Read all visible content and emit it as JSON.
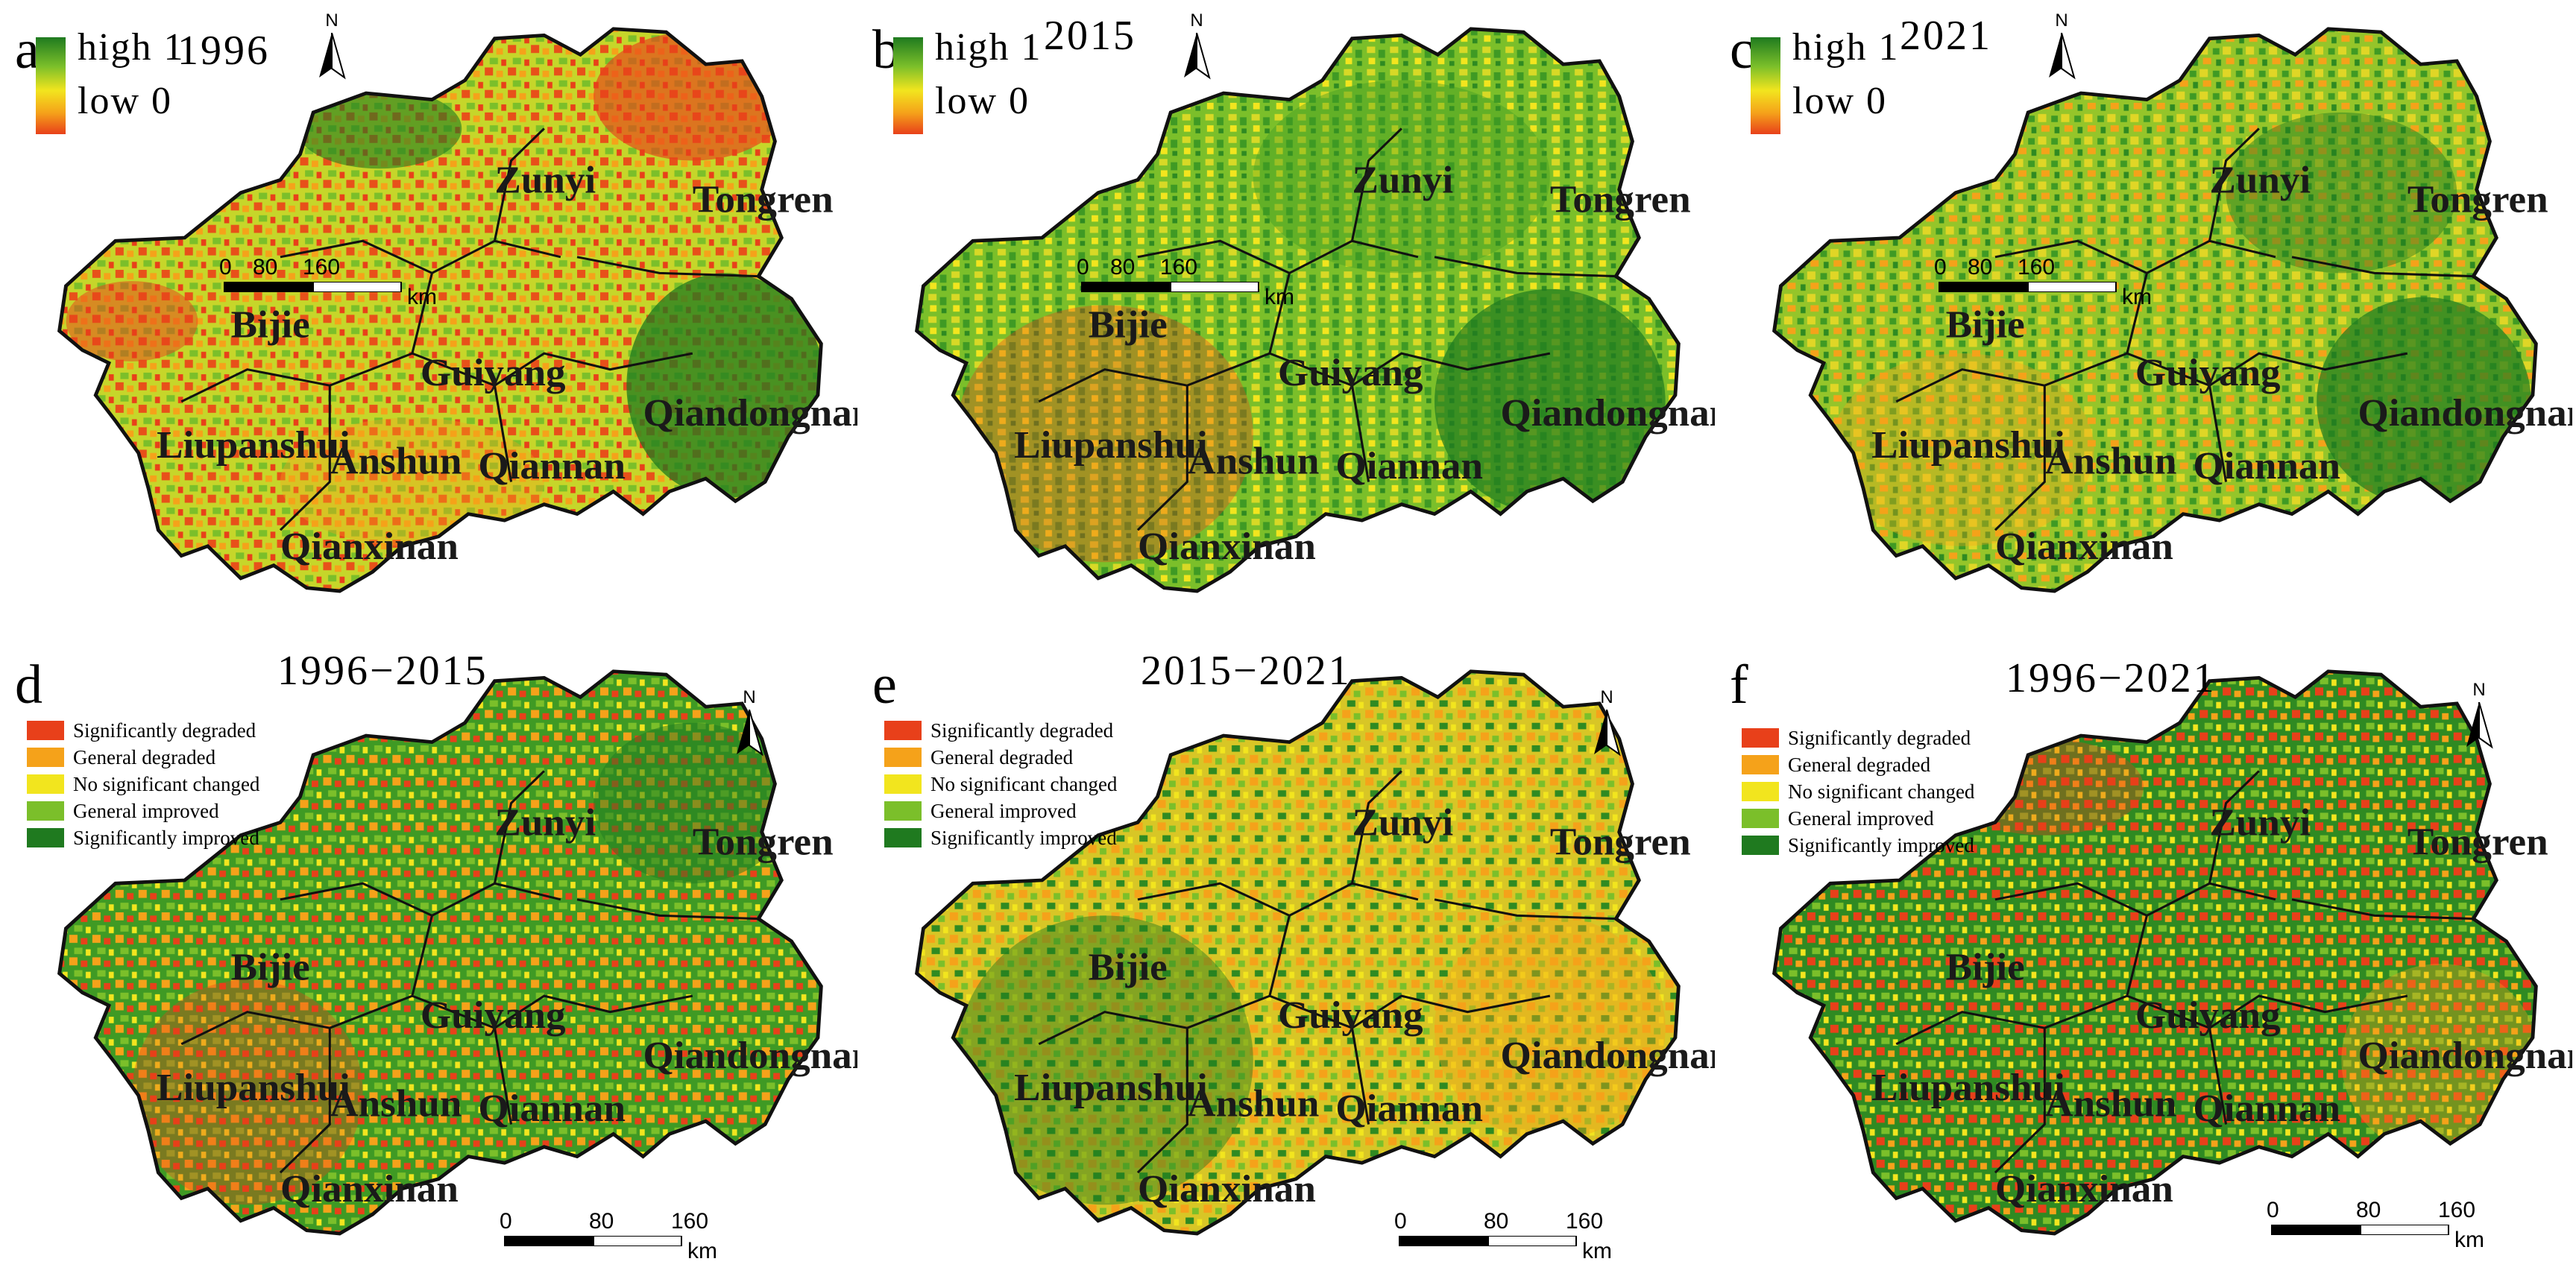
{
  "colors": {
    "sig_degraded": "#e8401a",
    "gen_degraded": "#f5a21a",
    "no_change": "#f2e51e",
    "gen_improved": "#7bbf2a",
    "sig_improved": "#1f7a1f"
  },
  "city_names": {
    "zunyi": "Zunyi",
    "tongren": "Tongren",
    "bijie": "Bijie",
    "guiyang": "Guiyang",
    "qiandongnan": "Qiandongnan",
    "liupanshui": "Liupanshui",
    "anshun": "Anshun",
    "qiannan": "Qiannan",
    "qianxinan": "Qianxinan"
  },
  "scale": {
    "ticks": [
      "0",
      "80",
      "160"
    ],
    "unit": "km"
  },
  "north_label": "N",
  "ramp": {
    "high": "high 1",
    "low": "low 0"
  },
  "legend": [
    "Significantly degraded",
    "General degraded",
    "No significant changed",
    "General improved",
    "Significantly improved"
  ],
  "panels": [
    {
      "letter": "a",
      "title": "1996",
      "type": "index"
    },
    {
      "letter": "b",
      "title": "2015",
      "type": "index"
    },
    {
      "letter": "c",
      "title": "2021",
      "type": "index"
    },
    {
      "letter": "d",
      "title": "1996−2015",
      "type": "change"
    },
    {
      "letter": "e",
      "title": "2015−2021",
      "type": "change"
    },
    {
      "letter": "f",
      "title": "1996−2021",
      "type": "change"
    }
  ]
}
